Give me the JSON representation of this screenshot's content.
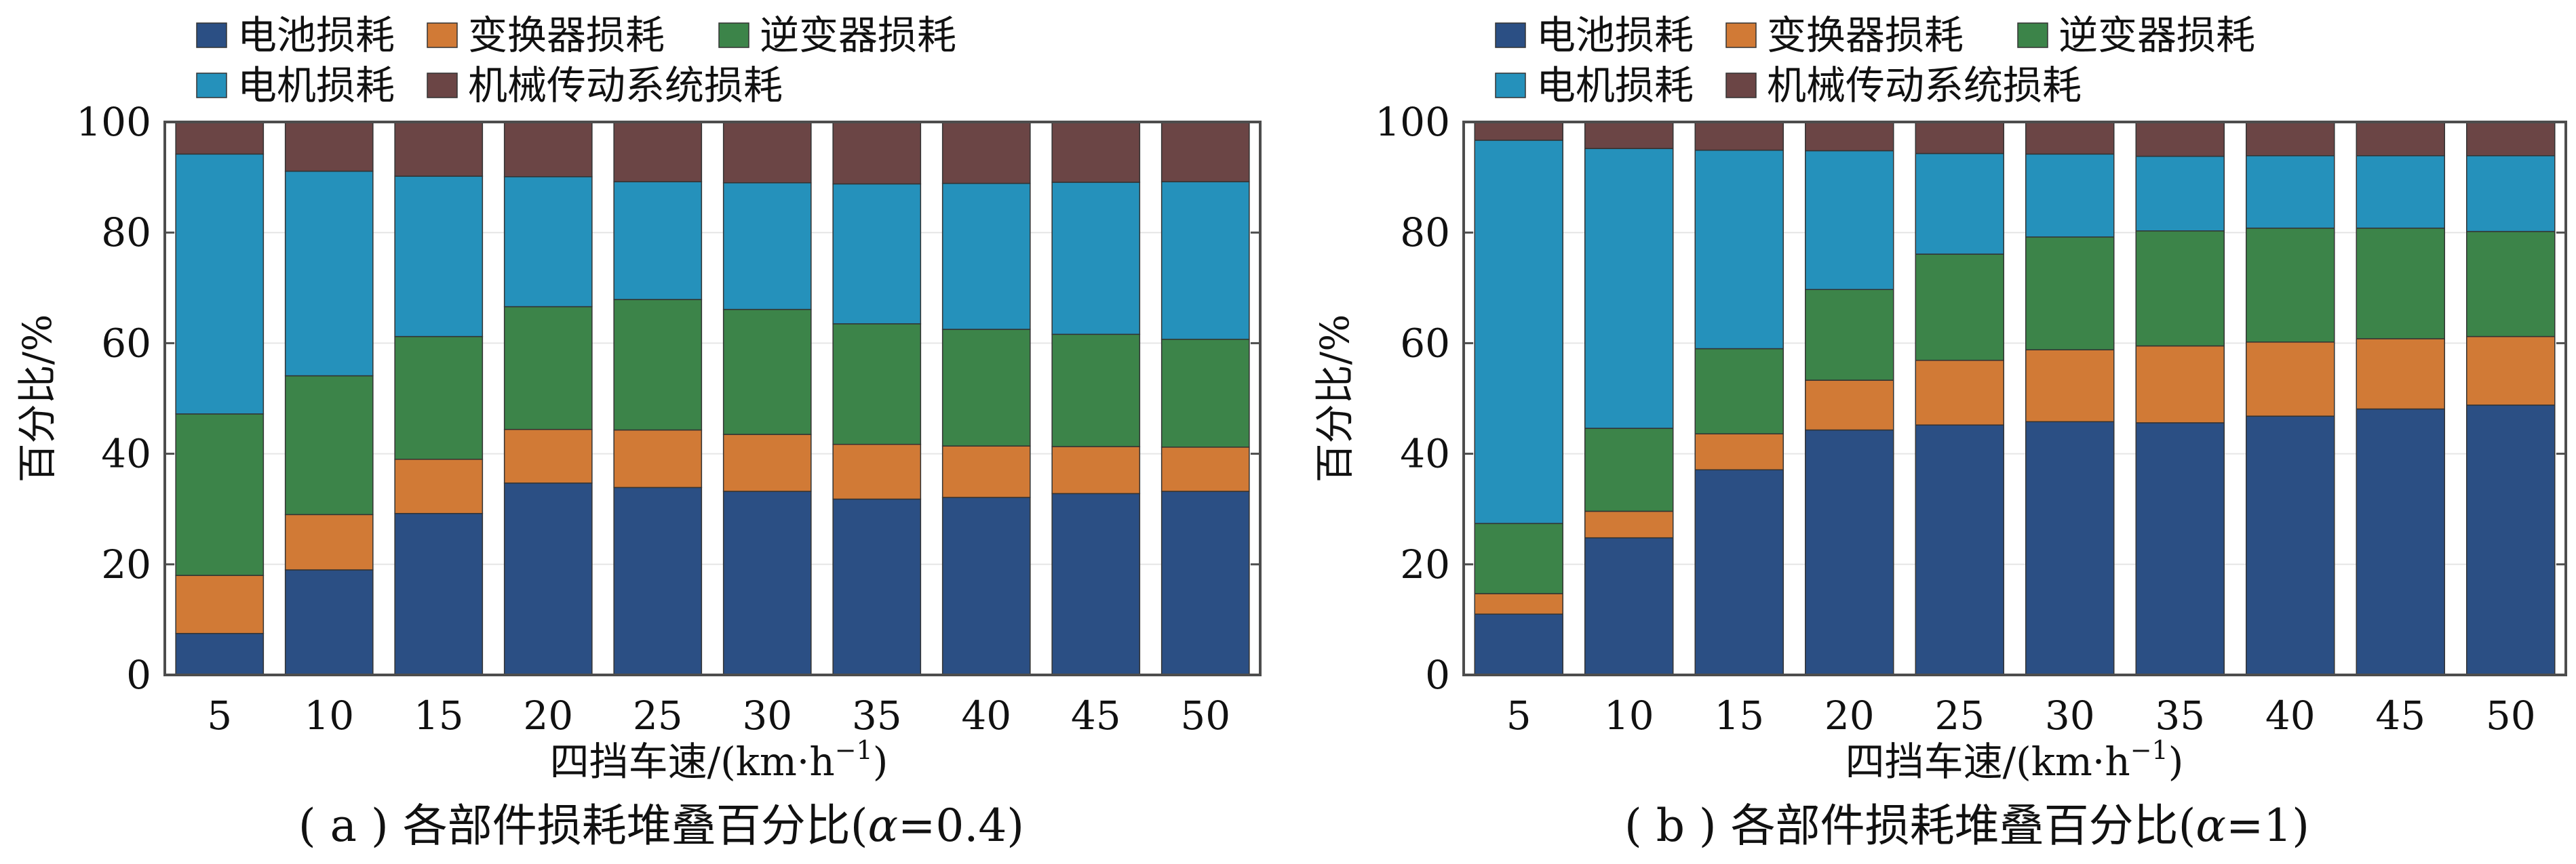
{
  "series_colors": [
    "#2b4f84",
    "#d17a36",
    "#3c8449",
    "#2591bb",
    "#6b4545"
  ],
  "chart_data": [
    {
      "type": "bar",
      "stacked": true,
      "caption_prefix": "( a ) 各部件损耗堆叠百分比(",
      "caption_var": "α",
      "caption_suffix": "=0.4)",
      "xlabel_main": "四挡车速/(km·h",
      "xlabel_sup": "−1",
      "xlabel_close": ")",
      "ylabel": "百分比/%",
      "ylim": [
        0,
        100
      ],
      "yticks": [
        "0",
        "20",
        "40",
        "60",
        "80",
        "100"
      ],
      "categories": [
        "5",
        "10",
        "15",
        "20",
        "25",
        "30",
        "35",
        "40",
        "45",
        "50"
      ],
      "legend_position": "top-left",
      "series": [
        {
          "name": "电池损耗",
          "values": [
            7.5,
            19,
            29.2,
            34.7,
            33.9,
            33.2,
            31.8,
            32.1,
            32.8,
            33.2
          ]
        },
        {
          "name": "变换器损耗",
          "values": [
            10.5,
            10,
            9.8,
            9.7,
            10.4,
            10.3,
            9.9,
            9.3,
            8.5,
            8.0
          ]
        },
        {
          "name": "逆变器损耗",
          "values": [
            29.2,
            25.1,
            22.2,
            22.2,
            23.6,
            22.6,
            21.8,
            21.1,
            20.3,
            19.5
          ]
        },
        {
          "name": "电机损耗",
          "values": [
            47,
            37,
            29,
            23.5,
            21.3,
            22.9,
            25.3,
            26.4,
            27.5,
            28.5
          ]
        },
        {
          "name": "机械传动系统损耗",
          "values": [
            5.8,
            8.9,
            9.8,
            9.9,
            10.8,
            11.0,
            11.2,
            11.1,
            10.9,
            10.8
          ]
        }
      ]
    },
    {
      "type": "bar",
      "stacked": true,
      "caption_prefix": "( b ) 各部件损耗堆叠百分比(",
      "caption_var": "α",
      "caption_suffix": "=1)",
      "xlabel_main": "四挡车速/(km·h",
      "xlabel_sup": "−1",
      "xlabel_close": ")",
      "ylabel": "百分比/%",
      "ylim": [
        0,
        100
      ],
      "yticks": [
        "0",
        "20",
        "40",
        "60",
        "80",
        "100"
      ],
      "categories": [
        "5",
        "10",
        "15",
        "20",
        "25",
        "30",
        "35",
        "40",
        "45",
        "50"
      ],
      "legend_position": "top-left",
      "series": [
        {
          "name": "电池损耗",
          "values": [
            11,
            24.8,
            37.1,
            44.3,
            45.2,
            45.8,
            45.6,
            46.8,
            48.1,
            48.8
          ]
        },
        {
          "name": "变换器损耗",
          "values": [
            3.7,
            4.8,
            6.5,
            9.0,
            11.7,
            13.0,
            13.9,
            13.4,
            12.7,
            12.4
          ]
        },
        {
          "name": "逆变器损耗",
          "values": [
            12.7,
            15.0,
            15.4,
            16.4,
            19.2,
            20.4,
            20.8,
            20.6,
            20.0,
            19.0
          ]
        },
        {
          "name": "电机损耗",
          "values": [
            69.3,
            50.6,
            35.9,
            25.1,
            18.2,
            15.0,
            13.5,
            13.1,
            13.1,
            13.7
          ]
        },
        {
          "name": "机械传动系统损耗",
          "values": [
            3.3,
            4.8,
            5.1,
            5.2,
            5.7,
            5.8,
            6.2,
            6.1,
            6.1,
            6.1
          ]
        }
      ]
    }
  ]
}
